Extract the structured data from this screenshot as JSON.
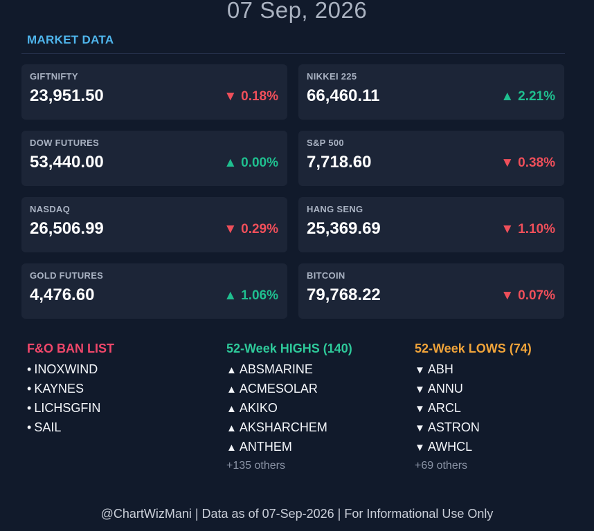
{
  "header": {
    "date": "07 Sep, 2026",
    "section_title": "MARKET DATA"
  },
  "colors": {
    "up": "#1fbf8f",
    "down": "#ef4f5a",
    "section_title": "#4fb5ec",
    "ban_title": "#f0476a",
    "high_title": "#2ec99a",
    "low_title": "#f1a43a",
    "card_background": "#1c2537",
    "page_background": "#111a2b"
  },
  "markets": [
    {
      "label": "GIFTNIFTY",
      "value": "23,951.50",
      "direction": "down",
      "arrow": "▼",
      "change": "0.18%"
    },
    {
      "label": "NIKKEI 225",
      "value": "66,460.11",
      "direction": "up",
      "arrow": "▲",
      "change": "2.21%"
    },
    {
      "label": "DOW FUTURES",
      "value": "53,440.00",
      "direction": "up",
      "arrow": "▲",
      "change": "0.00%"
    },
    {
      "label": "S&P 500",
      "value": "7,718.60",
      "direction": "down",
      "arrow": "▼",
      "change": "0.38%"
    },
    {
      "label": "NASDAQ",
      "value": "26,506.99",
      "direction": "down",
      "arrow": "▼",
      "change": "0.29%"
    },
    {
      "label": "HANG SENG",
      "value": "25,369.69",
      "direction": "down",
      "arrow": "▼",
      "change": "1.10%"
    },
    {
      "label": "GOLD FUTURES",
      "value": "4,476.60",
      "direction": "up",
      "arrow": "▲",
      "change": "1.06%"
    },
    {
      "label": "BITCOIN",
      "value": "79,768.22",
      "direction": "down",
      "arrow": "▼",
      "change": "0.07%"
    }
  ],
  "ban_list": {
    "title": "F&O BAN LIST",
    "bullet": "•",
    "items": [
      "INOXWIND",
      "KAYNES",
      "LICHSGFIN",
      "SAIL"
    ]
  },
  "highs": {
    "title": "52-Week HIGHS (140)",
    "marker": "▲",
    "items": [
      "ABSMARINE",
      "ACMESOLAR",
      "AKIKO",
      "AKSHARCHEM",
      "ANTHEM"
    ],
    "more": "+135 others"
  },
  "lows": {
    "title": "52-Week LOWS (74)",
    "marker": "▼",
    "items": [
      "ABH",
      "ANNU",
      "ARCL",
      "ASTRON",
      "AWHCL"
    ],
    "more": "+69 others"
  },
  "footer": {
    "text": "@ChartWizMani | Data as of 07-Sep-2026 | For Informational Use Only"
  }
}
